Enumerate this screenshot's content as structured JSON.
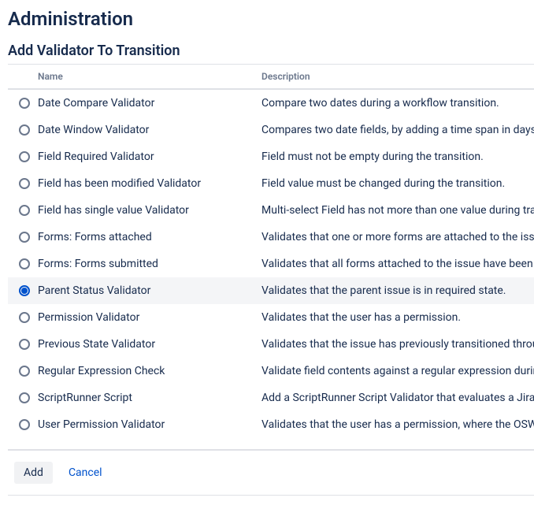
{
  "page": {
    "title": "Administration",
    "section_title": "Add Validator To Transition"
  },
  "table": {
    "headers": {
      "name": "Name",
      "description": "Description"
    },
    "rows": [
      {
        "name": "Date Compare Validator",
        "description": "Compare two dates during a workflow transition.",
        "selected": false
      },
      {
        "name": "Date Window Validator",
        "description": "Compares two date fields, by adding a time span in days to one of them.",
        "selected": false
      },
      {
        "name": "Field Required Validator",
        "description": "Field must not be empty during the transition.",
        "selected": false
      },
      {
        "name": "Field has been modified Validator",
        "description": "Field value must be changed during the transition.",
        "selected": false
      },
      {
        "name": "Field has single value Validator",
        "description": "Multi-select Field has not more than one value during transition.",
        "selected": false
      },
      {
        "name": "Forms: Forms attached",
        "description": "Validates that one or more forms are attached to the issue.",
        "selected": false
      },
      {
        "name": "Forms: Forms submitted",
        "description": "Validates that all forms attached to the issue have been submitted.",
        "selected": false
      },
      {
        "name": "Parent Status Validator",
        "description": "Validates that the parent issue is in required state.",
        "selected": true
      },
      {
        "name": "Permission Validator",
        "description": "Validates that the user has a permission.",
        "selected": false
      },
      {
        "name": "Previous State Validator",
        "description": "Validates that the issue has previously transitioned through a state.",
        "selected": false
      },
      {
        "name": "Regular Expression Check",
        "description": "Validate field contents against a regular expression during transition.",
        "selected": false
      },
      {
        "name": "ScriptRunner Script",
        "description": "Add a ScriptRunner Script Validator that evaluates a Jira Expression.",
        "selected": false
      },
      {
        "name": "User Permission Validator",
        "description": "Validates that the user has a permission, where the OSWorkflow variable holds the permission.",
        "selected": false
      }
    ]
  },
  "buttons": {
    "add": "Add",
    "cancel": "Cancel"
  }
}
